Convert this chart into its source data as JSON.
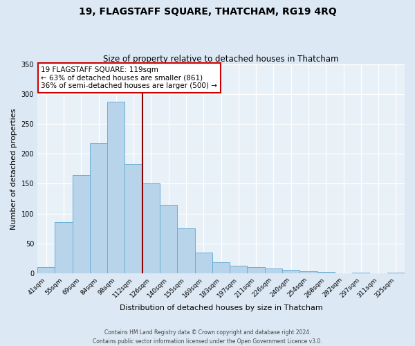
{
  "title": "19, FLAGSTAFF SQUARE, THATCHAM, RG19 4RQ",
  "subtitle": "Size of property relative to detached houses in Thatcham",
  "xlabel": "Distribution of detached houses by size in Thatcham",
  "ylabel": "Number of detached properties",
  "categories": [
    "41sqm",
    "55sqm",
    "69sqm",
    "84sqm",
    "98sqm",
    "112sqm",
    "126sqm",
    "140sqm",
    "155sqm",
    "169sqm",
    "183sqm",
    "197sqm",
    "211sqm",
    "226sqm",
    "240sqm",
    "254sqm",
    "268sqm",
    "282sqm",
    "297sqm",
    "311sqm",
    "325sqm"
  ],
  "values": [
    10,
    85,
    165,
    218,
    287,
    183,
    150,
    115,
    75,
    35,
    18,
    13,
    10,
    8,
    5,
    3,
    2,
    0,
    1,
    0,
    1
  ],
  "bar_color": "#b8d4ea",
  "bar_edge_color": "#6aaed6",
  "vline_color": "#8b0000",
  "box_edge_color": "#cc0000",
  "box_line1": "19 FLAGSTAFF SQUARE: 119sqm",
  "box_line2": "← 63% of detached houses are smaller (861)",
  "box_line3": "36% of semi-detached houses are larger (500) →",
  "ylim": [
    0,
    350
  ],
  "yticks": [
    0,
    50,
    100,
    150,
    200,
    250,
    300,
    350
  ],
  "bg_color": "#dce9f5",
  "plot_bg_color": "#e8f0f8",
  "grid_color": "#ffffff",
  "title_fontsize": 10,
  "subtitle_fontsize": 8.5,
  "tick_fontsize": 6.5,
  "ylabel_fontsize": 8,
  "xlabel_fontsize": 8,
  "footer1": "Contains HM Land Registry data © Crown copyright and database right 2024.",
  "footer2": "Contains public sector information licensed under the Open Government Licence v3.0.",
  "vline_index": 5.5
}
